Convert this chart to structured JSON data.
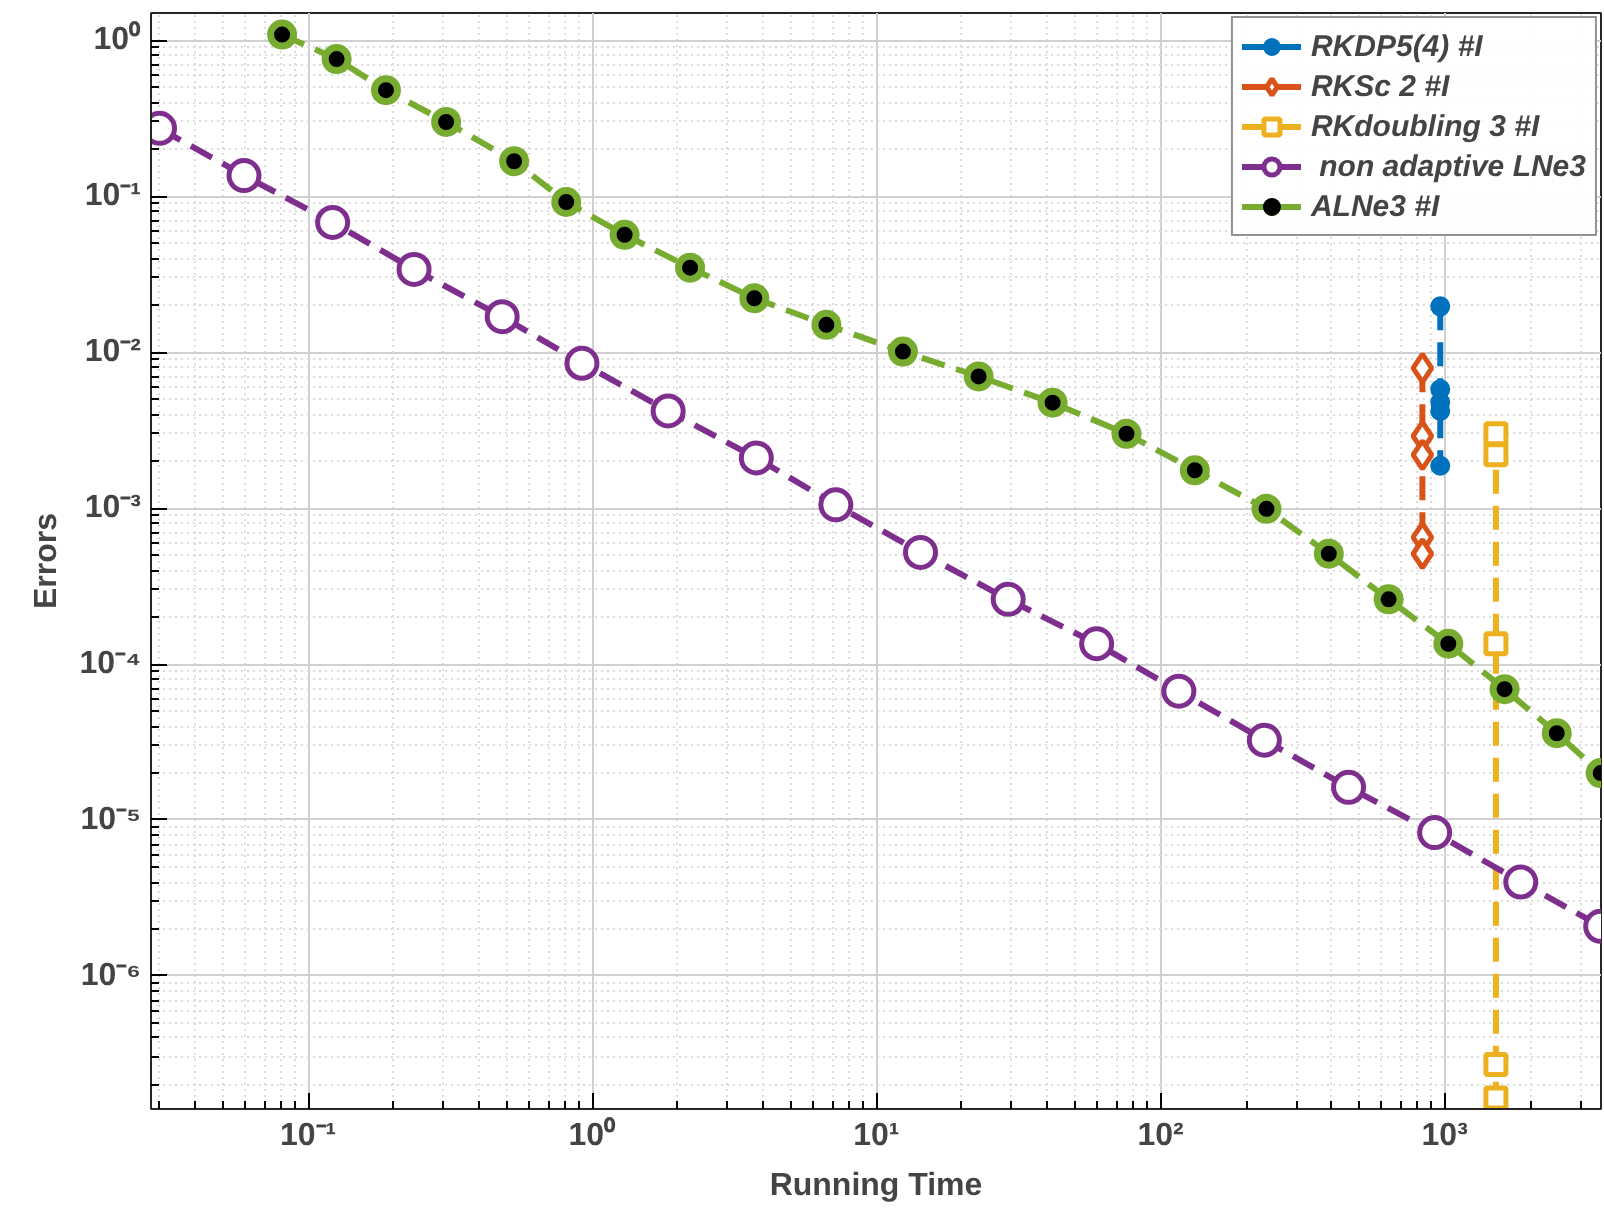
{
  "chart_data": {
    "type": "line",
    "xlabel": "Running Time",
    "ylabel": "Errors",
    "log": "xy",
    "grid": true,
    "legend": "top right",
    "line_style": "dashed",
    "xlim": [
      0.028,
      3550
    ],
    "ylim": [
      1.4e-07,
      1.5
    ],
    "xticks": [
      {
        "value": 0.1,
        "label": "10⁻¹"
      },
      {
        "value": 1,
        "label": "10⁰"
      },
      {
        "value": 10,
        "label": "10¹"
      },
      {
        "value": 100,
        "label": "10²"
      },
      {
        "value": 1000,
        "label": "10³"
      }
    ],
    "yticks": [
      {
        "value": 1e-06,
        "label": "10⁻⁶"
      },
      {
        "value": 1e-05,
        "label": "10⁻⁵"
      },
      {
        "value": 0.0001,
        "label": "10⁻⁴"
      },
      {
        "value": 0.001,
        "label": "10⁻³"
      },
      {
        "value": 0.01,
        "label": "10⁻²"
      },
      {
        "value": 0.1,
        "label": "10⁻¹"
      },
      {
        "value": 1,
        "label": "10⁰"
      }
    ],
    "series": [
      {
        "name": "RKDP5(4) #I",
        "color": "#0072bd",
        "marker": "dot",
        "x": [
          965,
          965,
          965,
          965,
          965
        ],
        "values": [
          0.0197,
          0.0058,
          0.0048,
          0.0042,
          0.00187
        ]
      },
      {
        "name": "RKSc 2 #I",
        "color": "#d95319",
        "marker": "diamond",
        "x": [
          835,
          835,
          835,
          835,
          835
        ],
        "values": [
          0.0079,
          0.0029,
          0.0022,
          0.00065,
          0.00051
        ]
      },
      {
        "name": "RKdoubling 3 #I",
        "color": "#edb120",
        "marker": "square",
        "x": [
          1515,
          1515,
          1515,
          1515,
          1515
        ],
        "values": [
          0.003,
          0.0022,
          0.000135,
          2.7e-07,
          1.65e-07
        ]
      },
      {
        "name": " non adaptive LNe3",
        "color": "#7e2f8e",
        "marker": "circle",
        "x": [
          0.03,
          0.0595,
          0.122,
          0.236,
          0.482,
          0.92,
          1.85,
          3.78,
          7.2,
          14.3,
          29.1,
          59.6,
          116,
          232,
          459,
          922,
          1853,
          3540
        ],
        "values": [
          0.273,
          0.136,
          0.068,
          0.034,
          0.0169,
          0.0085,
          0.0042,
          0.0021,
          0.00105,
          0.00052,
          0.00026,
          0.000135,
          6.7e-05,
          3.25e-05,
          1.62e-05,
          8.3e-06,
          4e-06,
          2.08e-06
        ]
      },
      {
        "name": "ALNe3 #I",
        "color": "#77ac30",
        "marker": "circle_dot",
        "x": [
          0.081,
          0.126,
          0.188,
          0.306,
          0.531,
          0.81,
          1.3,
          2.21,
          3.72,
          6.67,
          12.4,
          22.9,
          41.7,
          75.9,
          132,
          236,
          391,
          635,
          1030,
          1625,
          2480,
          3540
        ],
        "values": [
          1.09,
          0.76,
          0.48,
          0.3,
          0.168,
          0.092,
          0.0567,
          0.0349,
          0.0222,
          0.015,
          0.0101,
          0.007,
          0.00475,
          0.003,
          0.00175,
          0.00099,
          0.00051,
          0.00026,
          0.000135,
          6.9e-05,
          3.6e-05,
          2e-05
        ]
      }
    ]
  }
}
